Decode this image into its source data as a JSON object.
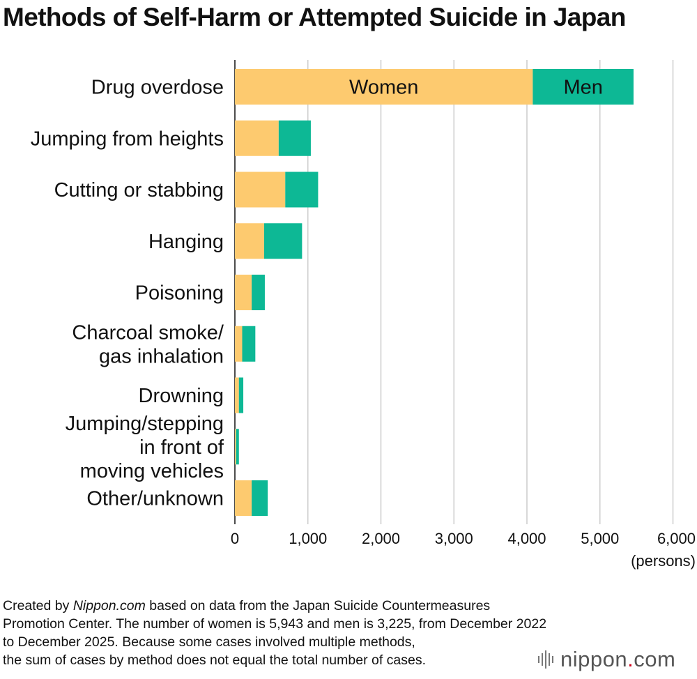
{
  "title": "Methods of Self-Harm or Attempted Suicide in Japan",
  "colors": {
    "women": "#fdca6f",
    "men": "#0db895",
    "grid": "#cccccc"
  },
  "chart_data": {
    "type": "bar",
    "orientation": "horizontal",
    "stacked": true,
    "categories": [
      "Drug overdose",
      "Jumping from heights",
      "Cutting or stabbing",
      "Hanging",
      "Poisoning",
      "Charcoal smoke/\ngas inhalation",
      "Drowning",
      "Jumping/stepping\nin front of\nmoving vehicles",
      "Other/unknown"
    ],
    "series": [
      {
        "name": "Women",
        "values": [
          4080,
          600,
          690,
          400,
          230,
          100,
          55,
          15,
          230
        ]
      },
      {
        "name": "Men",
        "values": [
          1380,
          440,
          450,
          520,
          180,
          180,
          60,
          40,
          220
        ]
      }
    ],
    "xlim": [
      0,
      6000
    ],
    "xticks": [
      0,
      1000,
      2000,
      3000,
      4000,
      5000,
      6000
    ],
    "xtick_labels": [
      "0",
      "1,000",
      "2,000",
      "3,000",
      "4,000",
      "5,000",
      "6,000"
    ],
    "unit_label": "(persons)",
    "grid": "vertical",
    "legend": "inside first bar"
  },
  "footer": {
    "line1_prefix": "Created by ",
    "line1_source": "Nippon.com",
    "line1_suffix": " based on data from the Japan Suicide Countermeasures",
    "line2": "Promotion Center. The number of women is 5,943 and men is 3,225, from December 2022",
    "line3": "to December 2025. Because some cases involved multiple methods,",
    "line4": "the sum of cases by method does not equal the total number of cases."
  },
  "logo": {
    "name": "nippon",
    "dot": ".",
    "suffix": "com"
  }
}
